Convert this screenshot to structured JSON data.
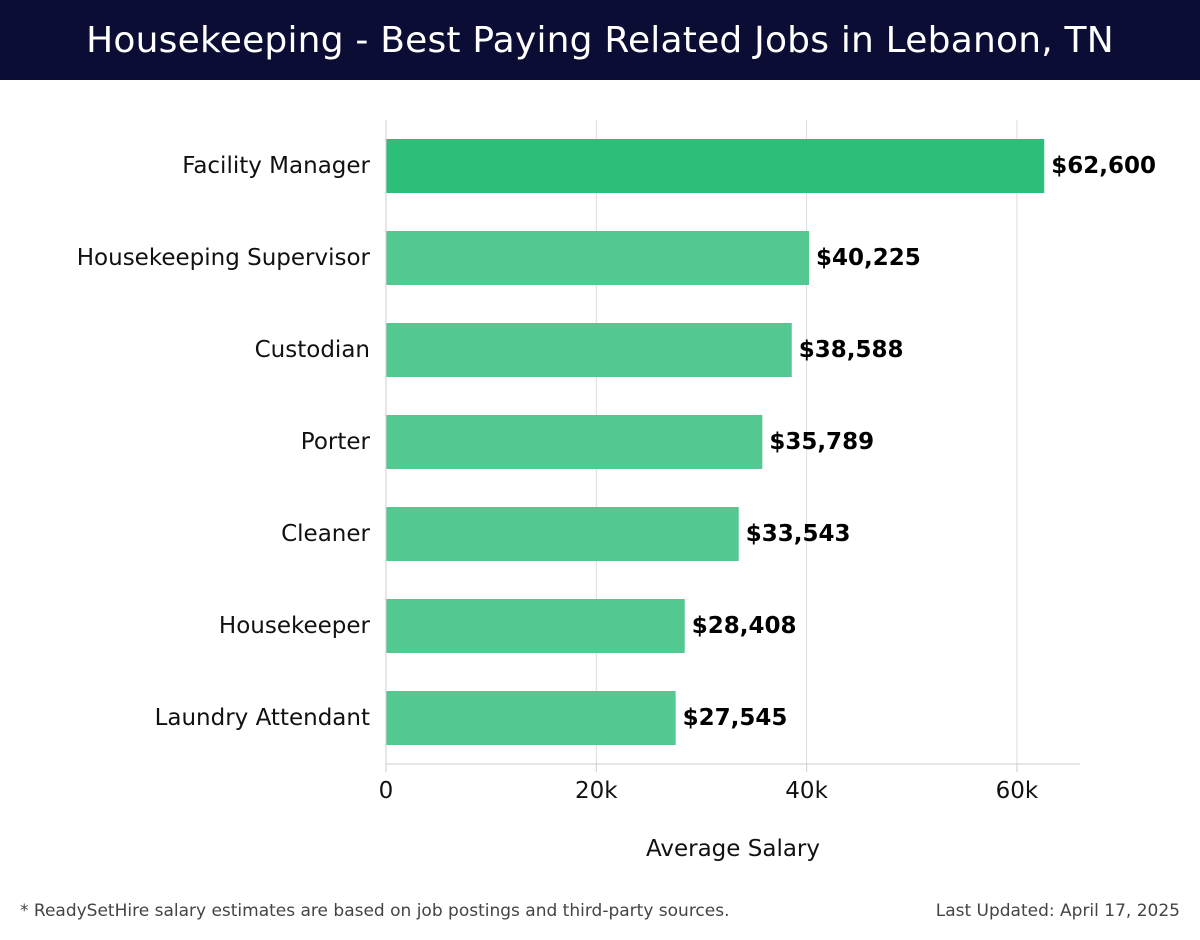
{
  "header": {
    "title": "Housekeeping - Best Paying Related Jobs in Lebanon, TN"
  },
  "chart_data": {
    "type": "bar",
    "orientation": "horizontal",
    "categories": [
      "Facility Manager",
      "Housekeeping Supervisor",
      "Custodian",
      "Porter",
      "Cleaner",
      "Housekeeper",
      "Laundry Attendant"
    ],
    "values": [
      62600,
      40225,
      38588,
      35789,
      33543,
      28408,
      27545
    ],
    "data_labels": [
      "$62,600",
      "$40,225",
      "$38,588",
      "$35,789",
      "$33,543",
      "$28,408",
      "$27,545"
    ],
    "xlabel": "Average Salary",
    "ylabel": "",
    "xlim": [
      0,
      66000
    ],
    "x_ticks": [
      0,
      20000,
      40000,
      60000
    ],
    "x_tick_labels": [
      "0",
      "20k",
      "40k",
      "60k"
    ],
    "grid": true,
    "colors": {
      "highlight": "#2bbf79",
      "bar": "#53c991",
      "grid": "#dddddd",
      "header_bg": "#0b0d35"
    }
  },
  "footer": {
    "note": "* ReadySetHire salary estimates are based on job postings and third-party sources.",
    "updated": "Last Updated: April 17, 2025"
  }
}
